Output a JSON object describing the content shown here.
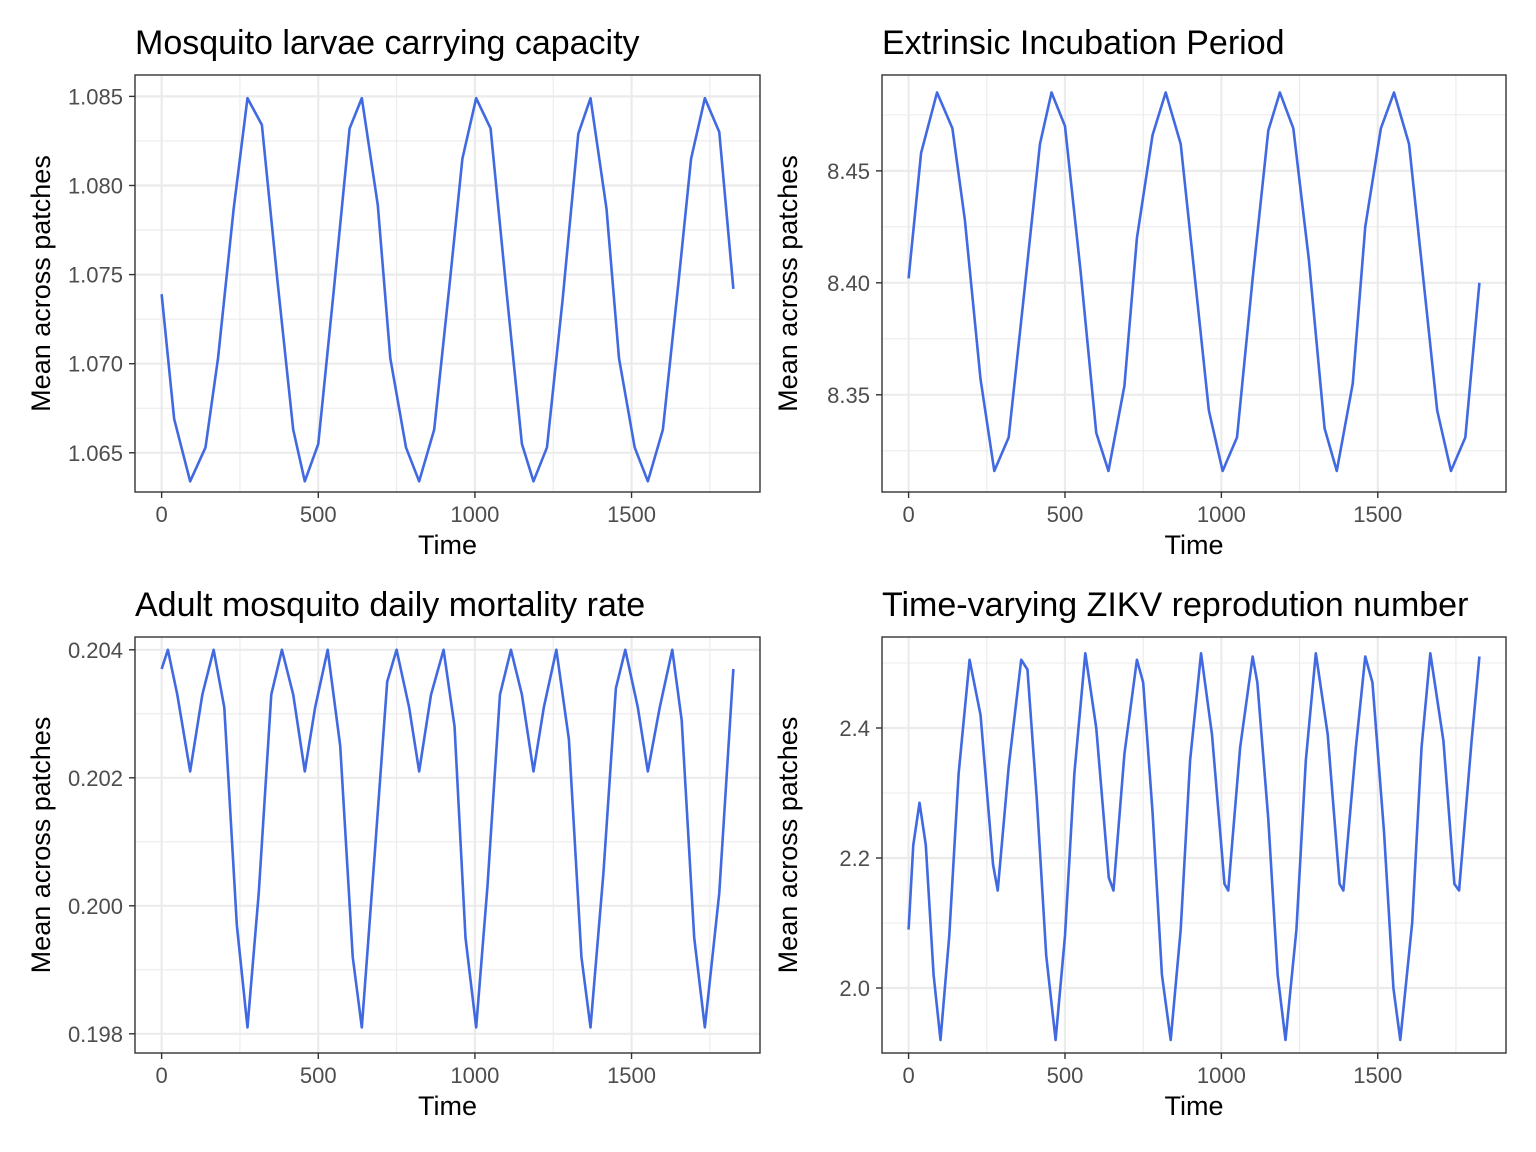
{
  "chart_data": [
    {
      "type": "line",
      "title": "Mosquito larvae carrying capacity",
      "xlabel": "Time",
      "ylabel": "Mean across patches",
      "xlim": [
        -85,
        1910
      ],
      "ylim": [
        1.0628,
        1.0862
      ],
      "xticks": [
        0,
        500,
        1000,
        1500
      ],
      "xtick_labels": [
        "0",
        "500",
        "1000",
        "1500"
      ],
      "yticks": [
        1.065,
        1.07,
        1.075,
        1.08,
        1.085
      ],
      "ytick_labels": [
        "1.065",
        "1.070",
        "1.075",
        "1.080",
        "1.085"
      ],
      "grid": true,
      "series": [
        {
          "color": "#4169e1",
          "x": [
            0,
            40,
            91,
            140,
            180,
            230,
            274,
            320,
            370,
            420,
            457,
            500,
            550,
            600,
            639,
            690,
            730,
            780,
            822,
            870,
            920,
            960,
            1004,
            1050,
            1100,
            1150,
            1187,
            1230,
            1280,
            1330,
            1369,
            1420,
            1460,
            1510,
            1552,
            1600,
            1650,
            1690,
            1734,
            1780,
            1825
          ],
          "y": [
            1.0739,
            1.0669,
            1.0634,
            1.0653,
            1.0703,
            1.0787,
            1.0849,
            1.0834,
            1.0746,
            1.0663,
            1.0634,
            1.0655,
            1.0742,
            1.0832,
            1.0849,
            1.0789,
            1.0703,
            1.0653,
            1.0634,
            1.0663,
            1.0746,
            1.0815,
            1.0849,
            1.0832,
            1.0742,
            1.0655,
            1.0634,
            1.0653,
            1.0736,
            1.0829,
            1.0849,
            1.0787,
            1.0703,
            1.0653,
            1.0634,
            1.0663,
            1.0746,
            1.0815,
            1.0849,
            1.083,
            1.0742
          ]
        }
      ]
    },
    {
      "type": "line",
      "title": "Extrinsic Incubation Period",
      "xlabel": "Time",
      "ylabel": "Mean across patches",
      "xlim": [
        -85,
        1910
      ],
      "ylim": [
        8.3066,
        8.4928
      ],
      "xticks": [
        0,
        500,
        1000,
        1500
      ],
      "xtick_labels": [
        "0",
        "500",
        "1000",
        "1500"
      ],
      "yticks": [
        8.35,
        8.4,
        8.45
      ],
      "ytick_labels": [
        "8.35",
        "8.40",
        "8.45"
      ],
      "grid": true,
      "series": [
        {
          "color": "#4169e1",
          "x": [
            0,
            40,
            91,
            140,
            180,
            230,
            274,
            320,
            370,
            420,
            457,
            500,
            550,
            600,
            639,
            690,
            730,
            780,
            822,
            870,
            920,
            960,
            1004,
            1050,
            1100,
            1150,
            1187,
            1230,
            1280,
            1330,
            1369,
            1420,
            1460,
            1510,
            1552,
            1600,
            1650,
            1690,
            1734,
            1780,
            1825
          ],
          "y": [
            8.402,
            8.458,
            8.485,
            8.469,
            8.428,
            8.357,
            8.316,
            8.331,
            8.396,
            8.462,
            8.485,
            8.47,
            8.405,
            8.333,
            8.316,
            8.354,
            8.42,
            8.466,
            8.485,
            8.462,
            8.396,
            8.343,
            8.316,
            8.331,
            8.402,
            8.468,
            8.485,
            8.469,
            8.41,
            8.335,
            8.316,
            8.355,
            8.425,
            8.469,
            8.485,
            8.462,
            8.396,
            8.343,
            8.316,
            8.331,
            8.4
          ]
        }
      ]
    },
    {
      "type": "line",
      "title": "Adult mosquito daily mortality rate",
      "xlabel": "Time",
      "ylabel": "Mean across patches",
      "xlim": [
        -85,
        1910
      ],
      "ylim": [
        0.1977,
        0.2042
      ],
      "xticks": [
        0,
        500,
        1000,
        1500
      ],
      "xtick_labels": [
        "0",
        "500",
        "1000",
        "1500"
      ],
      "yticks": [
        0.198,
        0.2,
        0.202,
        0.204
      ],
      "ytick_labels": [
        "0.198",
        "0.200",
        "0.202",
        "0.204"
      ],
      "grid": true,
      "series": [
        {
          "color": "#4169e1",
          "x": [
            0,
            20,
            50,
            91,
            130,
            166,
            200,
            240,
            274,
            310,
            350,
            384,
            420,
            457,
            490,
            530,
            570,
            610,
            639,
            680,
            720,
            750,
            790,
            822,
            860,
            900,
            935,
            970,
            1004,
            1040,
            1080,
            1115,
            1150,
            1187,
            1220,
            1260,
            1300,
            1340,
            1369,
            1410,
            1450,
            1480,
            1520,
            1552,
            1590,
            1630,
            1660,
            1700,
            1734,
            1780,
            1825
          ],
          "y": [
            0.2037,
            0.204,
            0.2033,
            0.2021,
            0.2033,
            0.204,
            0.2031,
            0.1997,
            0.1981,
            0.2002,
            0.2033,
            0.204,
            0.2033,
            0.2021,
            0.2031,
            0.204,
            0.2025,
            0.1992,
            0.1981,
            0.2008,
            0.2035,
            0.204,
            0.2031,
            0.2021,
            0.2033,
            0.204,
            0.2028,
            0.1995,
            0.1981,
            0.2003,
            0.2033,
            0.204,
            0.2033,
            0.2021,
            0.2031,
            0.204,
            0.2026,
            0.1992,
            0.1981,
            0.2005,
            0.2034,
            0.204,
            0.2031,
            0.2021,
            0.2031,
            0.204,
            0.2029,
            0.1995,
            0.1981,
            0.2002,
            0.2037
          ]
        }
      ]
    },
    {
      "type": "line",
      "title": "Time-varying ZIKV reprodution number",
      "xlabel": "Time",
      "ylabel": "Mean across patches",
      "xlim": [
        -85,
        1910
      ],
      "ylim": [
        1.9,
        2.54
      ],
      "xticks": [
        0,
        500,
        1000,
        1500
      ],
      "xtick_labels": [
        "0",
        "500",
        "1000",
        "1500"
      ],
      "yticks": [
        2.0,
        2.2,
        2.4
      ],
      "ytick_labels": [
        "2.0",
        "2.2",
        "2.4"
      ],
      "grid": true,
      "series": [
        {
          "color": "#4169e1",
          "x": [
            0,
            15,
            35,
            55,
            80,
            102,
            130,
            160,
            195,
            230,
            270,
            285,
            320,
            360,
            380,
            410,
            440,
            470,
            500,
            530,
            565,
            600,
            640,
            655,
            690,
            730,
            750,
            780,
            810,
            838,
            870,
            900,
            935,
            970,
            1010,
            1022,
            1060,
            1100,
            1115,
            1150,
            1180,
            1205,
            1240,
            1270,
            1302,
            1340,
            1378,
            1390,
            1430,
            1460,
            1483,
            1520,
            1550,
            1572,
            1610,
            1640,
            1668,
            1710,
            1745,
            1760,
            1800,
            1825
          ],
          "y": [
            2.09,
            2.22,
            2.285,
            2.22,
            2.02,
            1.92,
            2.08,
            2.33,
            2.505,
            2.42,
            2.19,
            2.15,
            2.34,
            2.505,
            2.49,
            2.29,
            2.05,
            1.92,
            2.08,
            2.33,
            2.515,
            2.4,
            2.17,
            2.15,
            2.36,
            2.505,
            2.47,
            2.27,
            2.02,
            1.92,
            2.09,
            2.35,
            2.515,
            2.39,
            2.16,
            2.15,
            2.37,
            2.51,
            2.47,
            2.26,
            2.02,
            1.92,
            2.09,
            2.35,
            2.515,
            2.39,
            2.16,
            2.15,
            2.37,
            2.51,
            2.47,
            2.24,
            2.0,
            1.92,
            2.1,
            2.37,
            2.515,
            2.38,
            2.16,
            2.15,
            2.38,
            2.51
          ]
        }
      ]
    }
  ]
}
